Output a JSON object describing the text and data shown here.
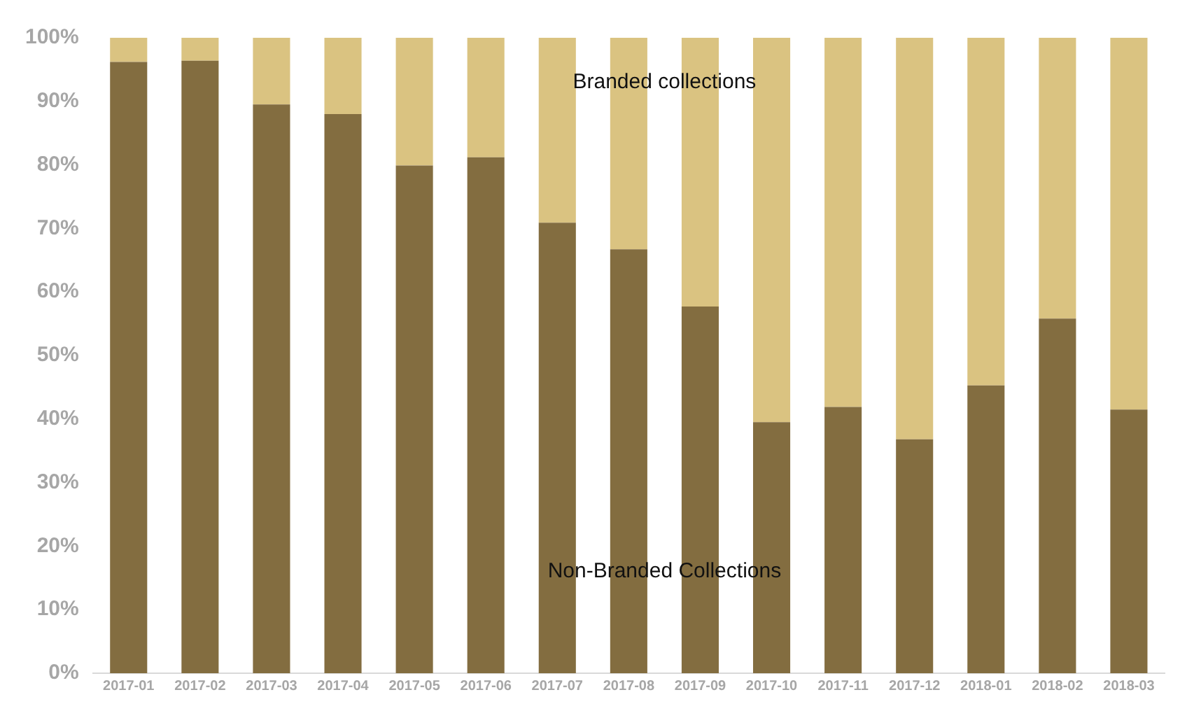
{
  "chart_data": {
    "type": "bar",
    "stacked": true,
    "categories": [
      "2017-01",
      "2017-02",
      "2017-03",
      "2017-04",
      "2017-05",
      "2017-06",
      "2017-07",
      "2017-08",
      "2017-09",
      "2017-10",
      "2017-11",
      "2017-12",
      "2018-01",
      "2018-02",
      "2018-03"
    ],
    "series": [
      {
        "name": "Non-Branded Collections",
        "color": "#836d40",
        "values": [
          96.2,
          96.4,
          89.5,
          88.0,
          79.9,
          81.2,
          70.9,
          66.7,
          57.7,
          39.5,
          41.9,
          36.8,
          45.3,
          55.8,
          41.5
        ]
      },
      {
        "name": "Branded collections",
        "color": "#dac381",
        "values": [
          3.8,
          3.6,
          10.5,
          12.0,
          20.1,
          18.8,
          29.1,
          33.3,
          42.3,
          60.5,
          58.1,
          63.2,
          54.7,
          44.2,
          58.5
        ]
      }
    ],
    "ylim": [
      0,
      100
    ],
    "yticks": [
      {
        "value": 0,
        "label": "0%"
      },
      {
        "value": 10,
        "label": "10%"
      },
      {
        "value": 20,
        "label": "20%"
      },
      {
        "value": 30,
        "label": "30%"
      },
      {
        "value": 40,
        "label": "40%"
      },
      {
        "value": 50,
        "label": "50%"
      },
      {
        "value": 60,
        "label": "60%"
      },
      {
        "value": 70,
        "label": "70%"
      },
      {
        "value": 80,
        "label": "80%"
      },
      {
        "value": 90,
        "label": "90%"
      },
      {
        "value": 100,
        "label": "100%"
      }
    ],
    "grid": false,
    "legend": false
  }
}
